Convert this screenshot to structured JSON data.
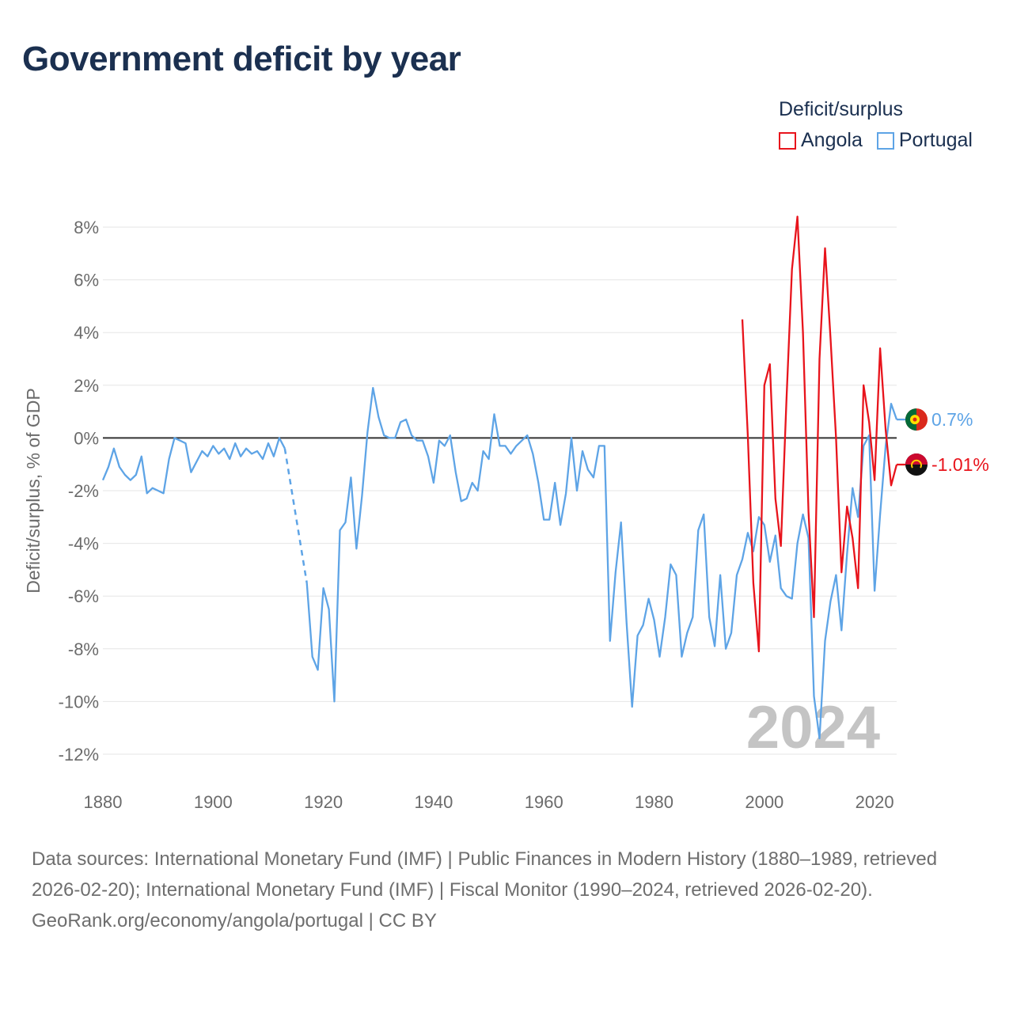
{
  "title": "Government deficit by year",
  "legend": {
    "title": "Deficit/surplus",
    "items": [
      {
        "name": "Angola",
        "color": "#e8141c"
      },
      {
        "name": "Portugal",
        "color": "#5ea4e6"
      }
    ]
  },
  "year_label": "2024",
  "footer": {
    "sources": "Data sources: International Monetary Fund (IMF) | Public Finances in Modern History (1880–1989, retrieved 2026-02-20); International Monetary Fund (IMF) | Fiscal Monitor (1990–2024, retrieved 2026-02-20).",
    "credit": "GeoRank.org/economy/angola/portugal | CC BY"
  },
  "chart_data": {
    "type": "line",
    "title": "Government deficit by year",
    "xlabel": "",
    "ylabel": "Deficit/surplus, % of GDP",
    "xlim": [
      1880,
      2024
    ],
    "ylim": [
      -12,
      8
    ],
    "xticks": [
      1880,
      1900,
      1920,
      1940,
      1960,
      1980,
      2000,
      2020
    ],
    "xtick_labels": [
      "1880",
      "1900",
      "1920",
      "1940",
      "1960",
      "1980",
      "2000",
      "2020"
    ],
    "yticks": [
      8,
      6,
      4,
      2,
      0,
      -2,
      -4,
      -6,
      -8,
      -10,
      -12
    ],
    "ytick_labels": [
      "8%",
      "6%",
      "4%",
      "2%",
      "0%",
      "-2%",
      "-4%",
      "-6%",
      "-8%",
      "-10%",
      "-12%"
    ],
    "zero_line": true,
    "series": [
      {
        "name": "Portugal",
        "color": "#5ea4e6",
        "end_label": "0.7%",
        "gap": [
          1913,
          1917
        ],
        "x": [
          1880,
          1881,
          1882,
          1883,
          1884,
          1885,
          1886,
          1887,
          1888,
          1889,
          1890,
          1891,
          1892,
          1893,
          1894,
          1895,
          1896,
          1897,
          1898,
          1899,
          1900,
          1901,
          1902,
          1903,
          1904,
          1905,
          1906,
          1907,
          1908,
          1909,
          1910,
          1911,
          1912,
          1913,
          1917,
          1918,
          1919,
          1920,
          1921,
          1922,
          1923,
          1924,
          1925,
          1926,
          1927,
          1928,
          1929,
          1930,
          1931,
          1932,
          1933,
          1934,
          1935,
          1936,
          1937,
          1938,
          1939,
          1940,
          1941,
          1942,
          1943,
          1944,
          1945,
          1946,
          1947,
          1948,
          1949,
          1950,
          1951,
          1952,
          1953,
          1954,
          1955,
          1956,
          1957,
          1958,
          1959,
          1960,
          1961,
          1962,
          1963,
          1964,
          1965,
          1966,
          1967,
          1968,
          1969,
          1970,
          1971,
          1972,
          1973,
          1974,
          1975,
          1976,
          1977,
          1978,
          1979,
          1980,
          1981,
          1982,
          1983,
          1984,
          1985,
          1986,
          1987,
          1988,
          1989,
          1990,
          1991,
          1992,
          1993,
          1994,
          1995,
          1996,
          1997,
          1998,
          1999,
          2000,
          2001,
          2002,
          2003,
          2004,
          2005,
          2006,
          2007,
          2008,
          2009,
          2010,
          2011,
          2012,
          2013,
          2014,
          2015,
          2016,
          2017,
          2018,
          2019,
          2020,
          2021,
          2022,
          2023,
          2024
        ],
        "y": [
          -1.6,
          -1.1,
          -0.4,
          -1.1,
          -1.4,
          -1.6,
          -1.4,
          -0.7,
          -2.1,
          -1.9,
          -2.0,
          -2.1,
          -0.8,
          0.0,
          -0.1,
          -0.2,
          -1.3,
          -0.9,
          -0.5,
          -0.7,
          -0.3,
          -0.6,
          -0.4,
          -0.8,
          -0.2,
          -0.7,
          -0.4,
          -0.6,
          -0.5,
          -0.8,
          -0.2,
          -0.7,
          0.0,
          -0.4,
          -5.5,
          -8.3,
          -8.8,
          -5.7,
          -6.5,
          -10.0,
          -3.5,
          -3.2,
          -1.5,
          -4.2,
          -2.2,
          0.2,
          1.9,
          0.8,
          0.1,
          0.0,
          0.0,
          0.6,
          0.7,
          0.1,
          -0.1,
          -0.1,
          -0.7,
          -1.7,
          -0.1,
          -0.3,
          0.1,
          -1.3,
          -2.4,
          -2.3,
          -1.7,
          -2.0,
          -0.5,
          -0.8,
          0.9,
          -0.3,
          -0.3,
          -0.6,
          -0.3,
          -0.1,
          0.1,
          -0.6,
          -1.7,
          -3.1,
          -3.1,
          -1.7,
          -3.3,
          -2.1,
          0.0,
          -2.0,
          -0.5,
          -1.2,
          -1.5,
          -0.3,
          -0.3,
          -7.7,
          -5.1,
          -3.2,
          -7.0,
          -10.2,
          -7.5,
          -7.1,
          -6.1,
          -6.9,
          -8.3,
          -6.8,
          -4.8,
          -5.2,
          -8.3,
          -7.4,
          -6.8,
          -3.5,
          -2.9,
          -6.8,
          -7.9,
          -5.2,
          -8.0,
          -7.4,
          -5.2,
          -4.6,
          -3.6,
          -4.3,
          -3.0,
          -3.3,
          -4.7,
          -3.7,
          -5.7,
          -6.0,
          -6.1,
          -4.0,
          -2.9,
          -3.8,
          -9.8,
          -11.4,
          -7.7,
          -6.2,
          -5.2,
          -7.3,
          -4.4,
          -1.9,
          -3.0,
          -0.3,
          0.1,
          -5.8,
          -2.9,
          -0.3,
          1.3,
          0.7
        ]
      },
      {
        "name": "Angola",
        "color": "#e8141c",
        "end_label": "-1.01%",
        "x": [
          1996,
          1997,
          1998,
          1999,
          2000,
          2001,
          2002,
          2003,
          2004,
          2005,
          2006,
          2007,
          2008,
          2009,
          2010,
          2011,
          2012,
          2013,
          2014,
          2015,
          2016,
          2017,
          2018,
          2019,
          2020,
          2021,
          2022,
          2023,
          2024
        ],
        "y": [
          4.5,
          0.1,
          -5.5,
          -8.1,
          2.0,
          2.8,
          -2.3,
          -4.1,
          1.4,
          6.4,
          8.4,
          4.0,
          -2.8,
          -6.8,
          3.0,
          7.2,
          3.8,
          0.0,
          -5.1,
          -2.6,
          -3.8,
          -5.7,
          2.0,
          0.6,
          -1.6,
          3.4,
          0.3,
          -1.8,
          -1.01
        ]
      }
    ]
  }
}
